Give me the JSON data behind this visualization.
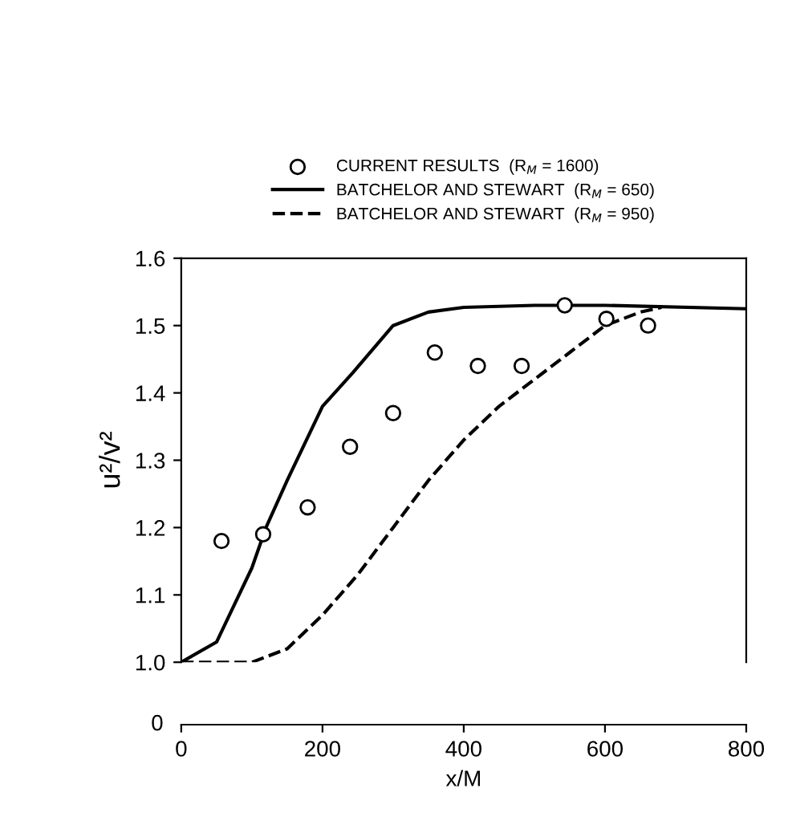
{
  "chart_data": {
    "type": "line",
    "ylabel": "u²/v²",
    "xlabel": "x/M",
    "xlim": [
      0,
      800
    ],
    "ylim": [
      1.0,
      1.6
    ],
    "xticks": [
      0,
      200,
      400,
      600,
      800
    ],
    "yticks": [
      {
        "value": 1.0,
        "label": "1.0"
      },
      1.1,
      1.2,
      1.3,
      1.4,
      1.5,
      1.6
    ],
    "legend": "top",
    "annotations": [
      "0"
    ],
    "series": [
      {
        "name": "CURRENT RESULTS  (R$_{M}$ = 1600)",
        "type": "scatter",
        "marker": "circle",
        "color": "#000000",
        "x": [
          57,
          116,
          179,
          239,
          300,
          359,
          420,
          482,
          543,
          602,
          661
        ],
        "values": [
          1.18,
          1.19,
          1.23,
          1.32,
          1.37,
          1.46,
          1.44,
          1.44,
          1.53,
          1.51,
          1.5
        ]
      },
      {
        "name": "BATCHELOR AND STEWART  (R$_{M}$ = 650)",
        "line_style": "solid",
        "color": "#000000",
        "x": [
          0,
          50,
          100,
          120,
          150,
          200,
          243,
          300,
          350,
          400,
          500,
          600,
          800
        ],
        "values": [
          1.0,
          1.03,
          1.14,
          1.2,
          1.27,
          1.38,
          1.43,
          1.5,
          1.52,
          1.527,
          1.53,
          1.53,
          1.525
        ]
      },
      {
        "name": "BATCHELOR AND STEWART  (R$_{M}$ = 950)",
        "line_style": "dashed",
        "color": "#000000",
        "x": [
          0,
          100,
          150,
          200,
          250,
          300,
          350,
          400,
          450,
          500,
          550,
          600,
          650,
          680
        ],
        "values": [
          1.0,
          1.0,
          1.02,
          1.07,
          1.13,
          1.2,
          1.27,
          1.33,
          1.38,
          1.42,
          1.46,
          1.5,
          1.52,
          1.527
        ]
      }
    ]
  }
}
